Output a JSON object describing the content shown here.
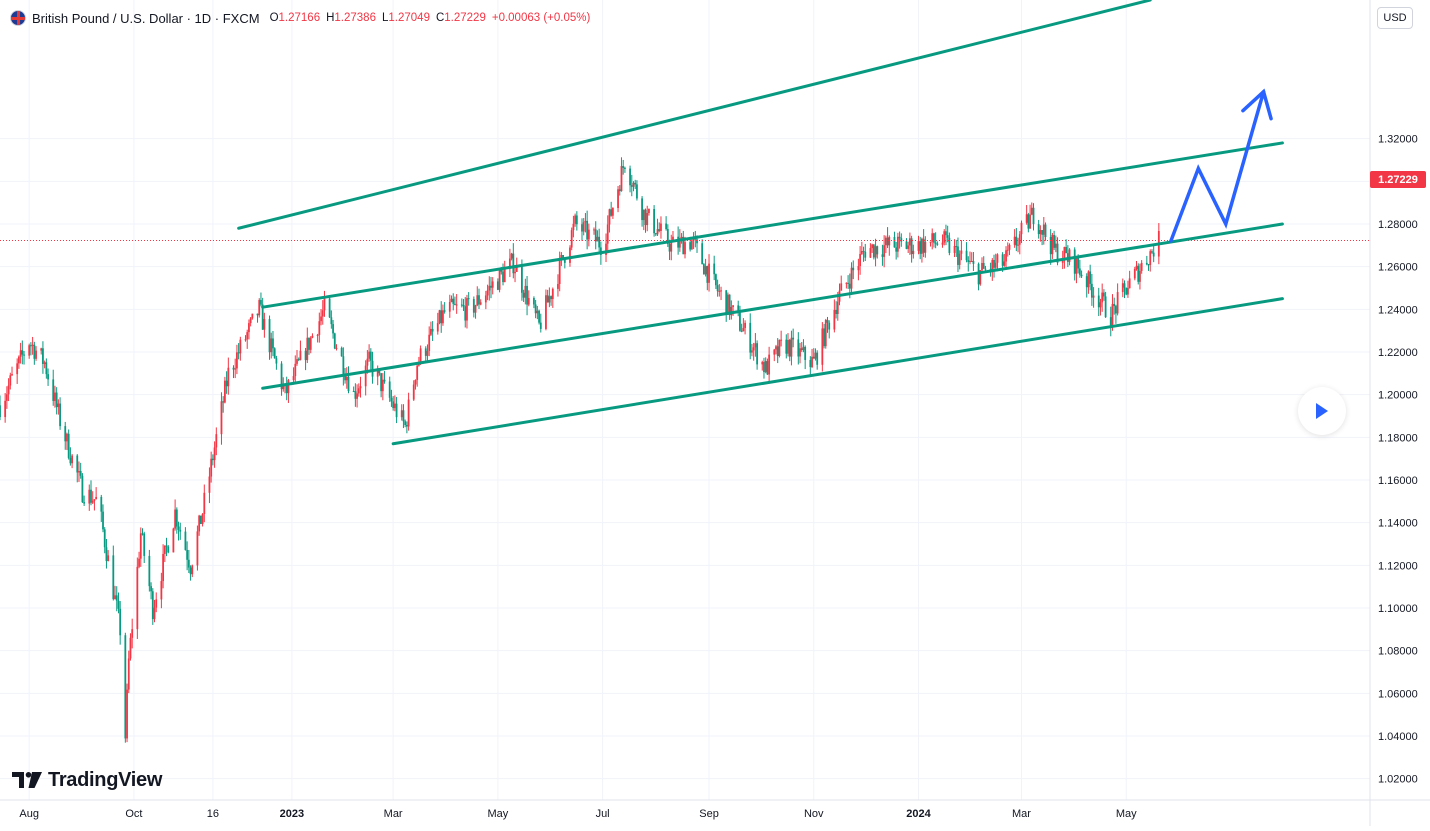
{
  "header": {
    "symbol": "British Pound / U.S. Dollar · 1D · FXCM",
    "open_label": "O",
    "open": "1.27166",
    "high_label": "H",
    "high": "1.27386",
    "low_label": "L",
    "low": "1.27049",
    "close_label": "C",
    "close": "1.27229",
    "change": "+0.00063 (+0.05%)"
  },
  "currency_badge": "USD",
  "last_price_label": "1.27229",
  "logo_text": "TradingView",
  "icons": {
    "flag": "gbp-usd-flag-icon",
    "play": "play-icon",
    "logo": "tradingview-logo-icon"
  },
  "colors": {
    "up": "#f23645",
    "down": "#089981",
    "channel": "#089981",
    "projection": "#2962ff",
    "last_price": "#f23645",
    "grid": "#f0f3fa"
  },
  "chart_data": {
    "type": "candlestick",
    "y_axis_ticks": [
      "1.32000",
      "1.30000",
      "1.28000",
      "1.26000",
      "1.24000",
      "1.22000",
      "1.20000",
      "1.18000",
      "1.16000",
      "1.14000",
      "1.12000",
      "1.10000",
      "1.08000",
      "1.06000",
      "1.04000",
      "1.02000"
    ],
    "ylim": [
      1.01,
      1.385
    ],
    "x_axis_ticks": [
      "Aug",
      "Oct",
      "16",
      "2023",
      "Mar",
      "May",
      "Jul",
      "Sep",
      "Nov",
      "2024",
      "Mar",
      "May"
    ],
    "x_tick_dates": [
      "2022-08-01",
      "2022-10-01",
      "2022-11-16",
      "2023-01-01",
      "2023-03-01",
      "2023-05-01",
      "2023-07-01",
      "2023-09-01",
      "2023-11-01",
      "2024-01-01",
      "2024-03-01",
      "2024-05-01"
    ],
    "last_price": 1.27229,
    "price_path": [
      [
        "2022-07-15",
        1.195
      ],
      [
        "2022-08-01",
        1.225
      ],
      [
        "2022-08-10",
        1.215
      ],
      [
        "2022-08-20",
        1.185
      ],
      [
        "2022-09-01",
        1.155
      ],
      [
        "2022-09-10",
        1.15
      ],
      [
        "2022-09-23",
        1.09
      ],
      [
        "2022-09-26",
        1.04
      ],
      [
        "2022-09-28",
        1.075
      ],
      [
        "2022-10-05",
        1.135
      ],
      [
        "2022-10-12",
        1.1
      ],
      [
        "2022-10-25",
        1.145
      ],
      [
        "2022-11-03",
        1.12
      ],
      [
        "2022-11-10",
        1.145
      ],
      [
        "2022-11-25",
        1.21
      ],
      [
        "2022-12-13",
        1.24
      ],
      [
        "2022-12-28",
        1.2
      ],
      [
        "2023-01-20",
        1.24
      ],
      [
        "2023-02-06",
        1.2
      ],
      [
        "2023-02-15",
        1.215
      ],
      [
        "2023-03-08",
        1.185
      ],
      [
        "2023-03-15",
        1.215
      ],
      [
        "2023-04-01",
        1.24
      ],
      [
        "2023-04-15",
        1.24
      ],
      [
        "2023-05-10",
        1.262
      ],
      [
        "2023-05-25",
        1.232
      ],
      [
        "2023-06-15",
        1.28
      ],
      [
        "2023-07-01",
        1.27
      ],
      [
        "2023-07-14",
        1.31
      ],
      [
        "2023-07-25",
        1.285
      ],
      [
        "2023-08-10",
        1.27
      ],
      [
        "2023-08-22",
        1.272
      ],
      [
        "2023-09-05",
        1.25
      ],
      [
        "2023-09-20",
        1.232
      ],
      [
        "2023-10-04",
        1.212
      ],
      [
        "2023-10-15",
        1.224
      ],
      [
        "2023-11-01",
        1.215
      ],
      [
        "2023-11-15",
        1.245
      ],
      [
        "2023-12-01",
        1.268
      ],
      [
        "2023-12-15",
        1.27
      ],
      [
        "2024-01-01",
        1.27
      ],
      [
        "2024-01-15",
        1.272
      ],
      [
        "2024-02-05",
        1.257
      ],
      [
        "2024-02-20",
        1.262
      ],
      [
        "2024-03-08",
        1.285
      ],
      [
        "2024-03-20",
        1.268
      ],
      [
        "2024-04-01",
        1.262
      ],
      [
        "2024-04-22",
        1.237
      ],
      [
        "2024-05-01",
        1.25
      ],
      [
        "2024-05-20",
        1.272
      ]
    ],
    "channel_lines": [
      {
        "start": [
          "2022-12-01",
          1.278
        ],
        "end": [
          "2024-05-15",
          1.385
        ]
      },
      {
        "start": [
          "2022-12-15",
          1.241
        ],
        "end": [
          "2024-07-31",
          1.318
        ]
      },
      {
        "start": [
          "2022-12-15",
          1.203
        ],
        "end": [
          "2024-07-31",
          1.28
        ]
      },
      {
        "start": [
          "2023-03-01",
          1.177
        ],
        "end": [
          "2024-07-31",
          1.245
        ]
      }
    ],
    "projection_path": [
      [
        "2024-05-27",
        1.272
      ],
      [
        "2024-06-12",
        1.306
      ],
      [
        "2024-06-28",
        1.28
      ],
      [
        "2024-07-20",
        1.342
      ]
    ]
  }
}
